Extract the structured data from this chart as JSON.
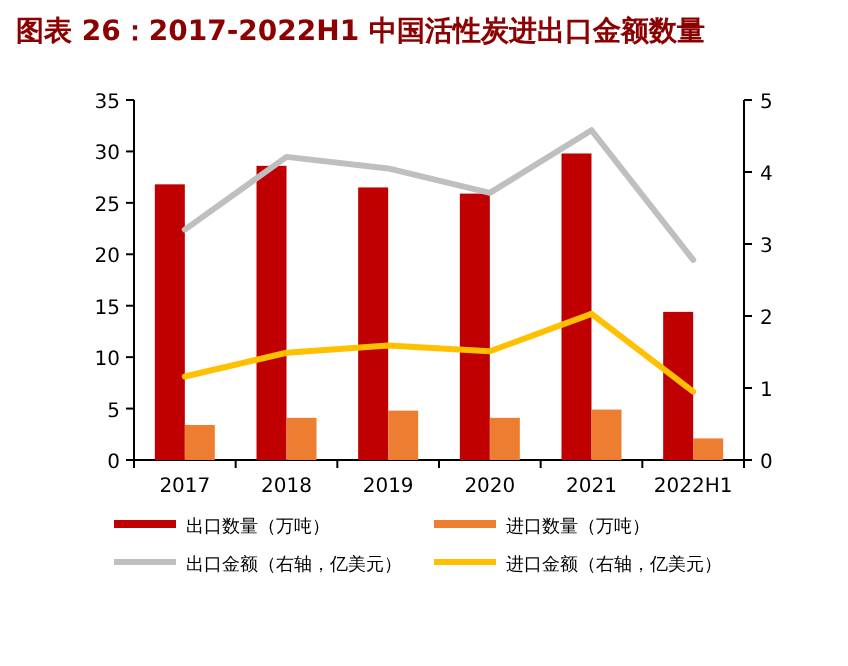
{
  "chart_data": {
    "type": "bar",
    "title": "图表 26：2017-2022H1 中国活性炭进出口金额数量",
    "categories": [
      "2017",
      "2018",
      "2019",
      "2020",
      "2021",
      "2022H1"
    ],
    "series": [
      {
        "name": "出口数量（万吨）",
        "color": "#c00000",
        "values": [
          26.8,
          28.6,
          26.5,
          25.9,
          29.8,
          14.4
        ]
      },
      {
        "name": "进口数量（万吨）",
        "color": "#ed7d31",
        "values": [
          3.4,
          4.1,
          4.8,
          4.1,
          4.9,
          2.1
        ]
      },
      {
        "name": "出口金额（右轴，亿美元）",
        "type": "line",
        "axis": "y2",
        "color": "#bfbfbf",
        "values": [
          3.2,
          4.21,
          4.05,
          3.71,
          4.58,
          2.78
        ]
      },
      {
        "name": "进口金额（右轴，亿美元）",
        "type": "line",
        "axis": "y2",
        "color": "#ffc000",
        "values": [
          1.16,
          1.49,
          1.59,
          1.51,
          2.03,
          0.95
        ]
      }
    ],
    "ylim": [
      0,
      35
    ],
    "yticks": [
      0,
      5,
      10,
      15,
      20,
      25,
      30,
      35
    ],
    "y2lim": [
      0,
      5
    ],
    "y2ticks": [
      0,
      1,
      2,
      3,
      4,
      5
    ],
    "legend": "bottom"
  }
}
